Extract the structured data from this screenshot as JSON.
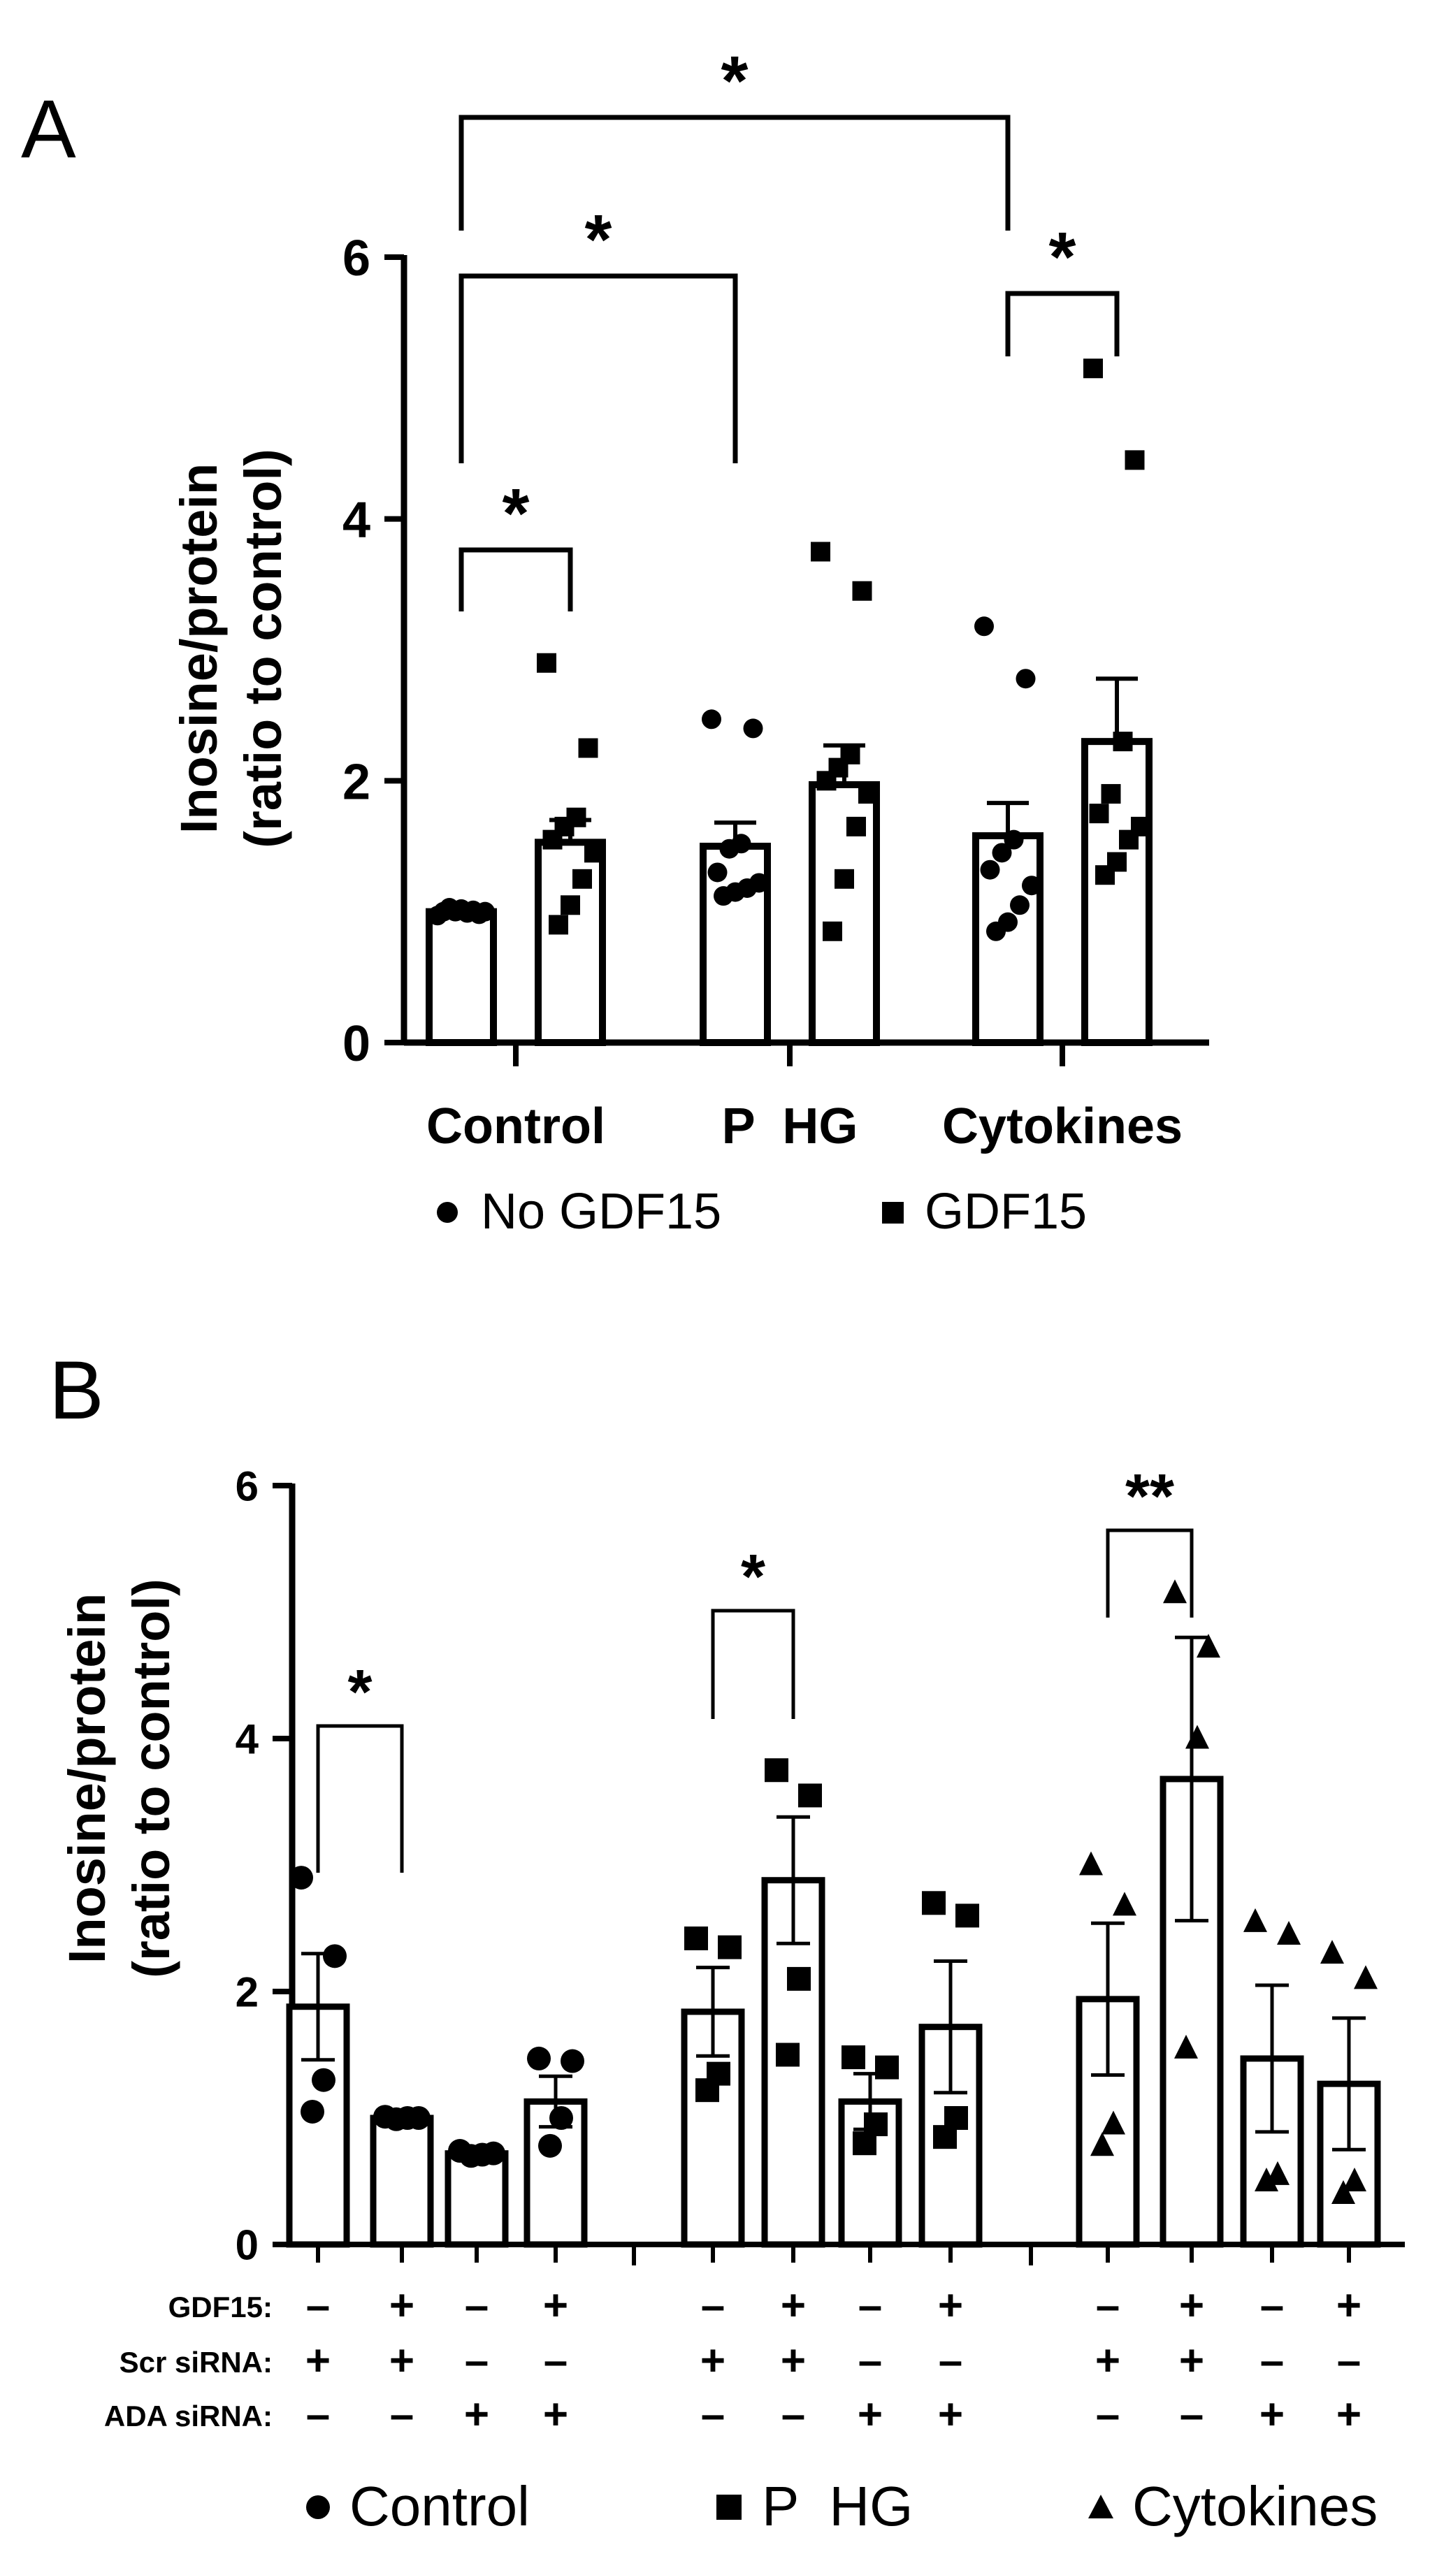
{
  "panels": [
    {
      "letter": "A",
      "ylabel_line1": "Inosine/protein",
      "ylabel_line2": "(ratio to control)",
      "legend": [
        {
          "marker": "circle",
          "label": "No GDF15"
        },
        {
          "marker": "square",
          "label": "GDF15"
        }
      ],
      "significance": [
        {
          "from": 0,
          "to": 1,
          "label": "*"
        },
        {
          "from": 0,
          "to": 2,
          "label": "*"
        },
        {
          "from": 0,
          "to": 4,
          "label": "*"
        },
        {
          "from": 4,
          "to": 5,
          "label": "*"
        }
      ]
    },
    {
      "letter": "B",
      "ylabel_line1": "Inosine/protein",
      "ylabel_line2": "(ratio to control)",
      "condition_rows": [
        {
          "label": "GDF15:",
          "values": [
            "–",
            "+",
            "–",
            "+",
            "–",
            "+",
            "–",
            "+",
            "–",
            "+",
            "–",
            "+"
          ]
        },
        {
          "label": "Scr siRNA:",
          "values": [
            "+",
            "+",
            "–",
            "–",
            "+",
            "+",
            "–",
            "–",
            "+",
            "+",
            "–",
            "–"
          ]
        },
        {
          "label": "ADA siRNA:",
          "values": [
            "–",
            "–",
            "+",
            "+",
            "–",
            "–",
            "+",
            "+",
            "–",
            "–",
            "+",
            "+"
          ]
        }
      ],
      "legend": [
        {
          "marker": "circle",
          "label": "Control"
        },
        {
          "marker": "square",
          "label": "P  HG"
        },
        {
          "marker": "triangle",
          "label": "Cytokines"
        }
      ],
      "significance": [
        {
          "from": 0,
          "to": 1,
          "label": "*"
        },
        {
          "from": 4,
          "to": 5,
          "label": "*"
        },
        {
          "from": 8,
          "to": 9,
          "label": "**"
        }
      ]
    }
  ],
  "chart_data": [
    {
      "type": "bar",
      "title": "",
      "ylabel": "Inosine/protein (ratio to control)",
      "xlabel": "",
      "ylim": [
        0,
        6
      ],
      "yticks": [
        0,
        2,
        4,
        6
      ],
      "groups": [
        "Control",
        "P  HG",
        "Cytokines"
      ],
      "series": [
        {
          "name": "No GDF15",
          "marker": "circle",
          "values": [
            1.0,
            1.5,
            1.58
          ],
          "sem": [
            0.02,
            0.18,
            0.25
          ],
          "points": [
            [
              0.97,
              0.98,
              0.99,
              1.0,
              1.0,
              1.0,
              1.01,
              1.02,
              1.03
            ],
            [
              2.47,
              2.4,
              1.52,
              1.48,
              1.3,
              1.22,
              1.18,
              1.15,
              1.12
            ],
            [
              3.18,
              2.78,
              1.55,
              1.45,
              1.32,
              1.2,
              1.05,
              0.92,
              0.85
            ]
          ]
        },
        {
          "name": "GDF15",
          "marker": "square",
          "values": [
            1.53,
            1.97,
            2.3
          ],
          "sem": [
            0.17,
            0.3,
            0.48
          ],
          "points": [
            [
              2.9,
              2.25,
              1.72,
              1.65,
              1.55,
              1.45,
              1.25,
              1.05,
              0.9
            ],
            [
              3.75,
              3.45,
              2.2,
              2.1,
              2.0,
              1.9,
              1.65,
              1.25,
              0.85
            ],
            [
              5.15,
              4.45,
              2.3,
              1.9,
              1.75,
              1.65,
              1.55,
              1.38,
              1.28
            ]
          ]
        }
      ]
    },
    {
      "type": "bar",
      "title": "",
      "ylabel": "Inosine/protein (ratio to control)",
      "xlabel": "",
      "ylim": [
        0,
        6
      ],
      "yticks": [
        0,
        2,
        4,
        6
      ],
      "groups": [
        "Control",
        "P  HG",
        "Cytokines"
      ],
      "bars": [
        {
          "group": 0,
          "marker": "circle",
          "value": 1.88,
          "sem": 0.42,
          "points": [
            2.9,
            2.28,
            1.3,
            1.05
          ]
        },
        {
          "group": 0,
          "marker": "circle",
          "value": 1.0,
          "sem": 0.01,
          "points": [
            1.01,
            1.0,
            1.0,
            0.99
          ]
        },
        {
          "group": 0,
          "marker": "circle",
          "value": 0.72,
          "sem": 0.02,
          "points": [
            0.74,
            0.72,
            0.71,
            0.7
          ]
        },
        {
          "group": 0,
          "marker": "circle",
          "value": 1.13,
          "sem": 0.2,
          "points": [
            1.47,
            1.45,
            1.0,
            0.78
          ]
        },
        {
          "group": 1,
          "marker": "square",
          "value": 1.84,
          "sem": 0.35,
          "points": [
            2.42,
            2.35,
            1.35,
            1.22
          ]
        },
        {
          "group": 1,
          "marker": "square",
          "value": 2.88,
          "sem": 0.5,
          "points": [
            3.75,
            3.55,
            2.1,
            1.5
          ]
        },
        {
          "group": 1,
          "marker": "square",
          "value": 1.13,
          "sem": 0.22,
          "points": [
            1.48,
            1.4,
            0.95,
            0.8
          ]
        },
        {
          "group": 1,
          "marker": "square",
          "value": 1.72,
          "sem": 0.52,
          "points": [
            2.7,
            2.6,
            1.0,
            0.85
          ]
        },
        {
          "group": 2,
          "marker": "triangle",
          "value": 1.94,
          "sem": 0.6,
          "points": [
            3.0,
            2.68,
            0.95,
            0.78
          ]
        },
        {
          "group": 2,
          "marker": "triangle",
          "value": 3.68,
          "sem": 1.12,
          "points": [
            5.15,
            4.72,
            4.0,
            1.55
          ]
        },
        {
          "group": 2,
          "marker": "triangle",
          "value": 1.47,
          "sem": 0.58,
          "points": [
            2.55,
            2.45,
            0.55,
            0.5
          ]
        },
        {
          "group": 2,
          "marker": "triangle",
          "value": 1.27,
          "sem": 0.52,
          "points": [
            2.3,
            2.1,
            0.5,
            0.4
          ]
        }
      ]
    }
  ]
}
